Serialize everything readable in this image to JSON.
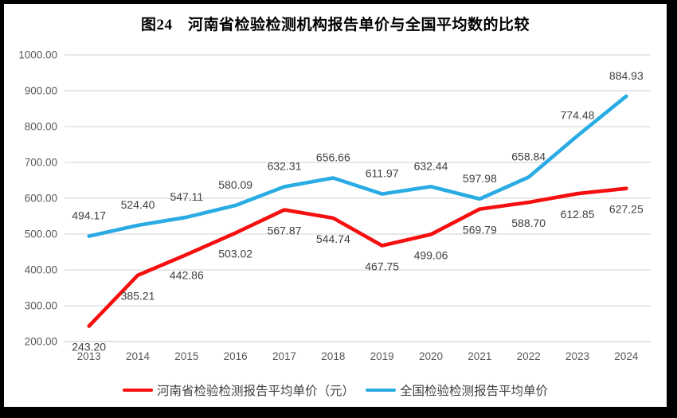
{
  "title": "图24　河南省检验检测机构报告单价与全国平均数的比较",
  "colors": {
    "henan_line": "#f50f0f",
    "national_line": "#29abe3",
    "gridline": "#d9d9d9",
    "axis_line": "#d0d0d0",
    "data_label": "#404040",
    "tick_label": "#595959",
    "frame_border": "#000000",
    "background": "#ffffff"
  },
  "chart_data": {
    "type": "line",
    "categories": [
      "2013",
      "2014",
      "2015",
      "2016",
      "2017",
      "2018",
      "2019",
      "2020",
      "2021",
      "2022",
      "2023",
      "2024"
    ],
    "series": [
      {
        "key": "henan",
        "name": "河南省检验检测报告平均单价（元）",
        "color": "#f50f0f",
        "label_position": "below",
        "values": [
          243.2,
          385.21,
          442.86,
          503.02,
          567.87,
          544.74,
          467.75,
          499.06,
          569.79,
          588.7,
          612.85,
          627.25
        ]
      },
      {
        "key": "national",
        "name": "全国检验检测报告平均单价",
        "color": "#29abe3",
        "label_position": "above",
        "values": [
          494.17,
          524.4,
          547.11,
          580.09,
          632.31,
          656.66,
          611.97,
          632.44,
          597.98,
          658.84,
          774.48,
          884.93
        ]
      }
    ],
    "title": "图24　河南省检验检测机构报告单价与全国平均数的比较",
    "xlabel": "",
    "ylabel": "",
    "ylim": [
      200,
      1000
    ],
    "ytick_step": 100,
    "ytick_format": "2dp",
    "value_format": "2dp",
    "grid": true,
    "legend_position": "bottom",
    "data_labels": true
  }
}
